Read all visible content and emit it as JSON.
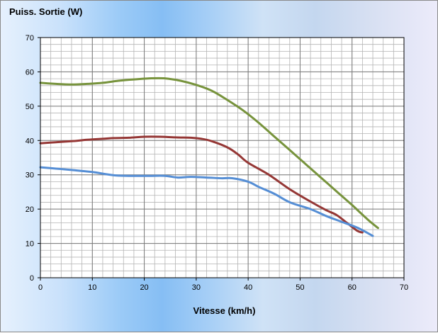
{
  "chart_data": {
    "type": "line",
    "title": "Puiss. Sortie (W)",
    "xlabel": "Vitesse (km/h)",
    "ylabel": "",
    "xlim": [
      0,
      70
    ],
    "ylim": [
      0,
      70
    ],
    "x_ticks": [
      "0",
      "10",
      "20",
      "30",
      "40",
      "50",
      "60",
      "70"
    ],
    "y_ticks": [
      "0",
      "10",
      "20",
      "30",
      "40",
      "50",
      "60",
      "70"
    ],
    "grid": true,
    "legend": "none",
    "series": [
      {
        "color": "#77933c",
        "points": [
          [
            0,
            56.8
          ],
          [
            3,
            56.5
          ],
          [
            6,
            56.3
          ],
          [
            9,
            56.5
          ],
          [
            12,
            56.8
          ],
          [
            15,
            57.4
          ],
          [
            18,
            57.8
          ],
          [
            21,
            58.1
          ],
          [
            24,
            58.1
          ],
          [
            27,
            57.4
          ],
          [
            30,
            56.2
          ],
          [
            33,
            54.5
          ],
          [
            36,
            51.8
          ],
          [
            39,
            48.8
          ],
          [
            42,
            45.2
          ],
          [
            45,
            41.2
          ],
          [
            48,
            37.2
          ],
          [
            51,
            33.2
          ],
          [
            54,
            29.2
          ],
          [
            57,
            25.2
          ],
          [
            60,
            21.2
          ],
          [
            63,
            17
          ],
          [
            65,
            14.5
          ]
        ]
      },
      {
        "color": "#953735",
        "points": [
          [
            0,
            39.2
          ],
          [
            3,
            39.5
          ],
          [
            6,
            39.8
          ],
          [
            9,
            40.2
          ],
          [
            12,
            40.5
          ],
          [
            14,
            40.7
          ],
          [
            17,
            40.8
          ],
          [
            20,
            41.1
          ],
          [
            23,
            41.1
          ],
          [
            26,
            40.9
          ],
          [
            29,
            40.8
          ],
          [
            31,
            40.5
          ],
          [
            33,
            39.8
          ],
          [
            36,
            38
          ],
          [
            38,
            36
          ],
          [
            40,
            33.5
          ],
          [
            44,
            30
          ],
          [
            48,
            25.8
          ],
          [
            52,
            22.2
          ],
          [
            55,
            19.7
          ],
          [
            57,
            18.3
          ],
          [
            59,
            16
          ],
          [
            61,
            13.7
          ],
          [
            62,
            13.2
          ]
        ]
      },
      {
        "color": "#558ed5",
        "points": [
          [
            0,
            32.2
          ],
          [
            3,
            31.8
          ],
          [
            6,
            31.4
          ],
          [
            10,
            30.8
          ],
          [
            14,
            29.9
          ],
          [
            17,
            29.7
          ],
          [
            21,
            29.7
          ],
          [
            24,
            29.7
          ],
          [
            26.5,
            29.2
          ],
          [
            29,
            29.4
          ],
          [
            32,
            29.2
          ],
          [
            35,
            29
          ],
          [
            37,
            29
          ],
          [
            40,
            28
          ],
          [
            42,
            26.5
          ],
          [
            45,
            24.5
          ],
          [
            48,
            22
          ],
          [
            52,
            20
          ],
          [
            55,
            18
          ],
          [
            58,
            16.3
          ],
          [
            61,
            14.6
          ],
          [
            64,
            12.2
          ]
        ]
      }
    ]
  }
}
